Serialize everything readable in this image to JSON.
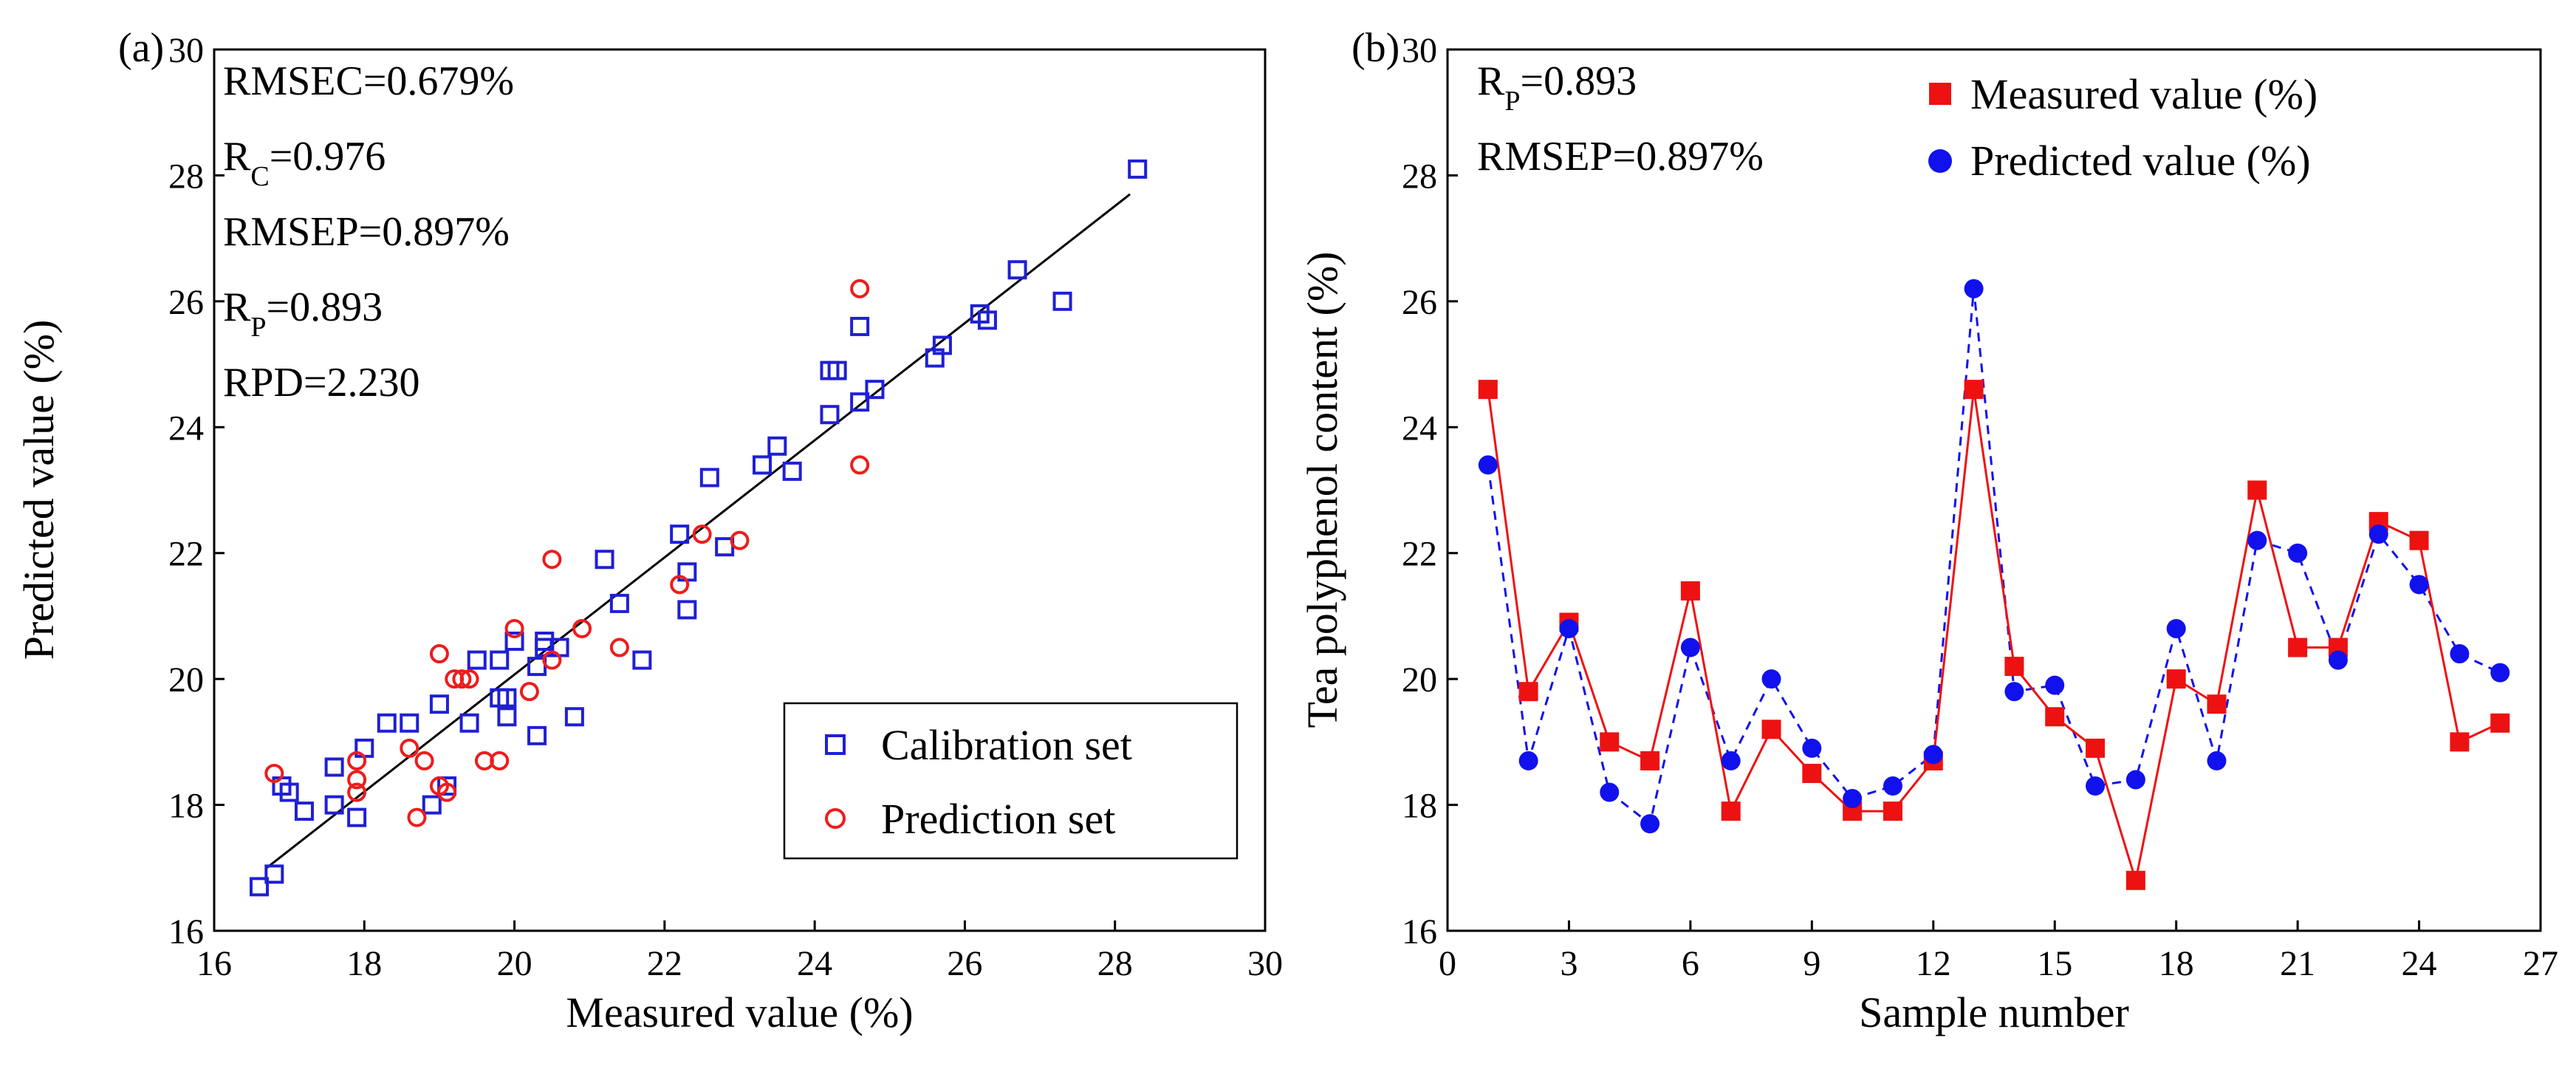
{
  "colors": {
    "calibration": "#1f1fd6",
    "prediction": "#ee1c1c",
    "measured": "#ee1111",
    "predicted": "#1111ee",
    "fit_line": "#000000"
  },
  "chart_data": [
    {
      "panel": "(a)",
      "type": "scatter",
      "xlabel": "Measured value (%)",
      "ylabel": "Predicted value (%)",
      "xlim": [
        16,
        30
      ],
      "ylim": [
        16,
        30
      ],
      "xticks": [
        "16",
        "18",
        "20",
        "22",
        "24",
        "26",
        "28",
        "30"
      ],
      "yticks": [
        "16",
        "18",
        "20",
        "22",
        "24",
        "26",
        "28",
        "30"
      ],
      "stats": [
        {
          "main": "RMSEC=0.679%"
        },
        {
          "main": "R",
          "sub": "C",
          "rest": "=0.976"
        },
        {
          "main": "RMSEP=0.897%"
        },
        {
          "main": "R",
          "sub": "P",
          "rest": "=0.893"
        },
        {
          "main": "RPD=2.230"
        }
      ],
      "legend": [
        "Calibration set",
        "Prediction set"
      ],
      "fit_line": {
        "x": [
          16.7,
          28.2
        ],
        "y": [
          17.0,
          27.7
        ]
      },
      "series": [
        {
          "name": "Calibration set",
          "marker": "open-square",
          "points": [
            [
              16.6,
              16.7
            ],
            [
              16.8,
              16.9
            ],
            [
              16.9,
              18.3
            ],
            [
              17.0,
              18.2
            ],
            [
              17.2,
              17.9
            ],
            [
              17.6,
              18.0
            ],
            [
              17.6,
              18.6
            ],
            [
              17.9,
              17.8
            ],
            [
              18.0,
              18.9
            ],
            [
              18.3,
              19.3
            ],
            [
              18.6,
              19.3
            ],
            [
              18.9,
              18.0
            ],
            [
              19.0,
              19.6
            ],
            [
              19.1,
              18.3
            ],
            [
              19.4,
              19.3
            ],
            [
              19.5,
              20.3
            ],
            [
              19.8,
              19.7
            ],
            [
              19.8,
              20.3
            ],
            [
              19.9,
              19.7
            ],
            [
              19.9,
              19.4
            ],
            [
              20.0,
              20.6
            ],
            [
              20.3,
              20.2
            ],
            [
              20.3,
              19.1
            ],
            [
              20.4,
              20.6
            ],
            [
              20.4,
              20.5
            ],
            [
              20.6,
              20.5
            ],
            [
              20.8,
              19.4
            ],
            [
              21.2,
              21.9
            ],
            [
              21.4,
              21.2
            ],
            [
              21.7,
              20.3
            ],
            [
              22.2,
              22.3
            ],
            [
              22.3,
              21.7
            ],
            [
              22.3,
              21.1
            ],
            [
              22.6,
              23.2
            ],
            [
              22.8,
              22.1
            ],
            [
              23.3,
              23.4
            ],
            [
              23.5,
              23.7
            ],
            [
              23.7,
              23.3
            ],
            [
              24.2,
              24.2
            ],
            [
              24.2,
              24.9
            ],
            [
              24.3,
              24.9
            ],
            [
              24.6,
              24.4
            ],
            [
              24.6,
              25.6
            ],
            [
              24.8,
              24.6
            ],
            [
              25.6,
              25.1
            ],
            [
              25.7,
              25.3
            ],
            [
              26.2,
              25.8
            ],
            [
              26.3,
              25.7
            ],
            [
              26.7,
              26.5
            ],
            [
              27.3,
              26.0
            ],
            [
              28.3,
              28.1
            ]
          ]
        },
        {
          "name": "Prediction set",
          "marker": "open-circle",
          "points": [
            [
              16.8,
              18.5
            ],
            [
              17.9,
              18.2
            ],
            [
              17.9,
              18.7
            ],
            [
              17.9,
              18.4
            ],
            [
              18.6,
              18.9
            ],
            [
              18.7,
              17.8
            ],
            [
              18.8,
              18.7
            ],
            [
              19.0,
              18.3
            ],
            [
              19.1,
              18.2
            ],
            [
              19.0,
              20.4
            ],
            [
              19.2,
              20.0
            ],
            [
              19.3,
              20.0
            ],
            [
              19.4,
              20.0
            ],
            [
              19.6,
              18.7
            ],
            [
              19.8,
              18.7
            ],
            [
              20.0,
              20.8
            ],
            [
              20.2,
              19.8
            ],
            [
              20.5,
              20.3
            ],
            [
              20.5,
              21.9
            ],
            [
              20.9,
              20.8
            ],
            [
              21.4,
              20.5
            ],
            [
              22.2,
              21.5
            ],
            [
              22.5,
              22.3
            ],
            [
              23.0,
              22.2
            ],
            [
              24.6,
              23.4
            ],
            [
              24.6,
              26.2
            ]
          ]
        }
      ]
    },
    {
      "panel": "(b)",
      "type": "line",
      "xlabel": "Sample number",
      "ylabel": "Tea polyphenol content (%)",
      "xlim": [
        0,
        27
      ],
      "ylim": [
        16,
        30
      ],
      "xticks": [
        "0",
        "3",
        "6",
        "9",
        "12",
        "15",
        "18",
        "21",
        "24",
        "27"
      ],
      "yticks": [
        "16",
        "18",
        "20",
        "22",
        "24",
        "26",
        "28",
        "30"
      ],
      "stats": [
        {
          "main": "R",
          "sub": "P",
          "rest": "=0.893"
        },
        {
          "main": "RMSEP=0.897%"
        }
      ],
      "legend": [
        "Measured value (%)",
        "Predicted value (%)"
      ],
      "x": [
        1,
        2,
        3,
        4,
        5,
        6,
        7,
        8,
        9,
        10,
        11,
        12,
        13,
        14,
        15,
        16,
        17,
        18,
        19,
        20,
        21,
        22,
        23,
        24,
        25,
        26
      ],
      "series": [
        {
          "name": "Measured value (%)",
          "marker": "filled-square",
          "line": "solid",
          "values": [
            24.6,
            19.8,
            20.9,
            19.0,
            18.7,
            21.4,
            17.9,
            19.2,
            18.5,
            17.9,
            17.9,
            18.7,
            24.6,
            20.2,
            19.4,
            18.9,
            16.8,
            20.0,
            19.6,
            23.0,
            20.5,
            20.5,
            22.5,
            22.2,
            19.0,
            19.3
          ]
        },
        {
          "name": "Predicted value (%)",
          "marker": "filled-circle",
          "line": "dashed",
          "values": [
            23.4,
            18.7,
            20.8,
            18.2,
            17.7,
            20.5,
            18.7,
            20.0,
            18.9,
            18.1,
            18.3,
            18.8,
            26.2,
            19.8,
            19.9,
            18.3,
            18.4,
            20.8,
            18.7,
            22.2,
            22.0,
            20.3,
            22.3,
            21.5,
            20.4,
            20.1
          ]
        }
      ]
    }
  ]
}
